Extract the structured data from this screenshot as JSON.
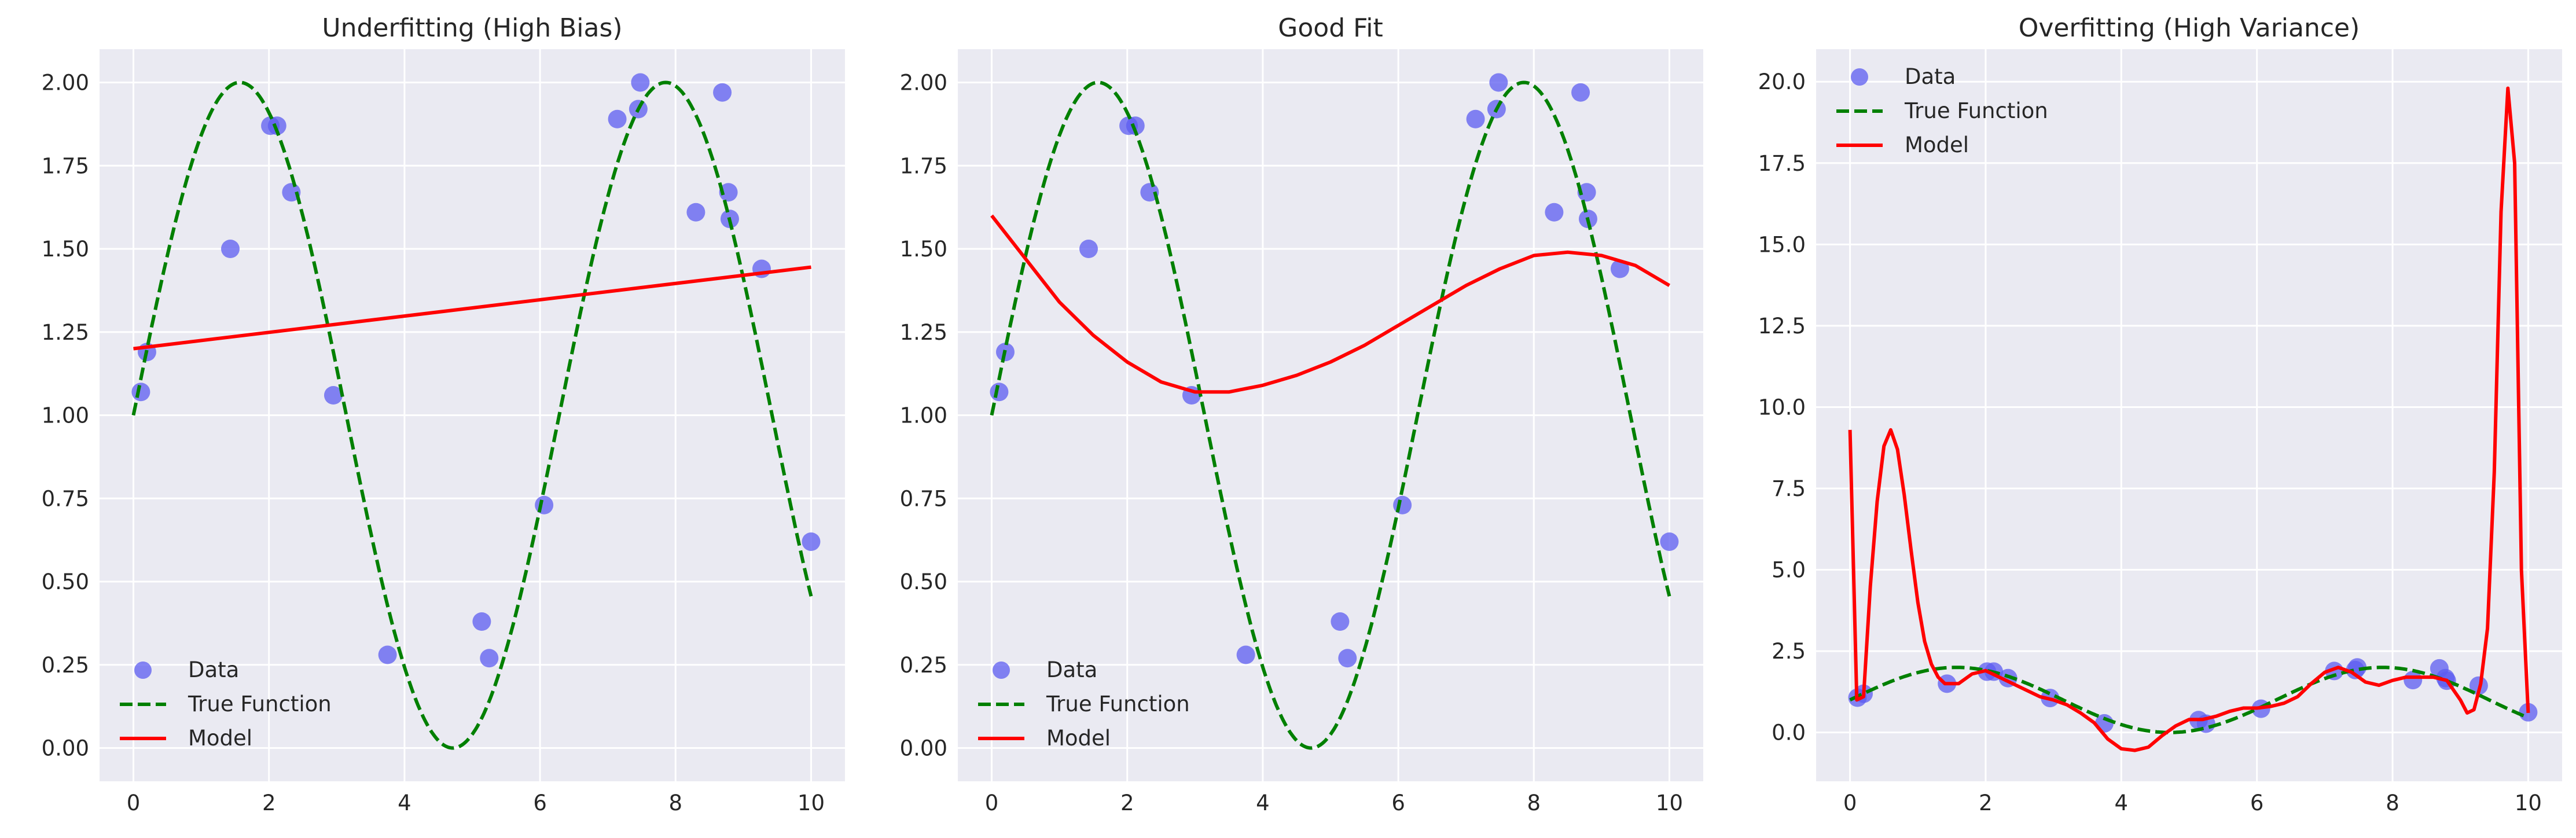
{
  "chart_data": [
    {
      "type": "scatter",
      "title": "Underfitting (High Bias)",
      "xlabel": "",
      "ylabel": "",
      "xlim": [
        -0.5,
        10.5
      ],
      "ylim": [
        -0.1,
        2.1
      ],
      "xticks": [
        0,
        2,
        4,
        6,
        8,
        10
      ],
      "xtick_labels": [
        "0",
        "2",
        "4",
        "6",
        "8",
        "10"
      ],
      "yticks": [
        0.0,
        0.25,
        0.5,
        0.75,
        1.0,
        1.25,
        1.5,
        1.75,
        2.0
      ],
      "ytick_labels": [
        "0.00",
        "0.25",
        "0.50",
        "0.75",
        "1.00",
        "1.25",
        "1.50",
        "1.75",
        "2.00"
      ],
      "grid": true,
      "legend_position": "lower-left",
      "series": [
        {
          "name": "Data",
          "kind": "scatter",
          "color": "#5c5cf0",
          "x": [
            0.11,
            0.2,
            1.43,
            2.02,
            2.12,
            2.33,
            2.95,
            3.75,
            5.14,
            5.25,
            6.06,
            7.14,
            7.45,
            7.48,
            8.3,
            8.69,
            8.78,
            8.8,
            9.27,
            10.0
          ],
          "y": [
            1.07,
            1.19,
            1.5,
            1.87,
            1.87,
            1.67,
            1.06,
            0.28,
            0.38,
            0.27,
            0.73,
            1.89,
            1.92,
            2.0,
            1.61,
            1.97,
            1.67,
            1.59,
            1.44,
            0.62
          ]
        },
        {
          "name": "True Function",
          "kind": "line",
          "style": "dashed",
          "color": "#008000",
          "function": "1 + sin(x)",
          "x_range": [
            0,
            10
          ]
        },
        {
          "name": "Model",
          "kind": "line",
          "style": "solid",
          "color": "#ff0000",
          "x": [
            0,
            10
          ],
          "y": [
            1.2,
            1.445
          ]
        }
      ]
    },
    {
      "type": "scatter",
      "title": "Good Fit",
      "xlabel": "",
      "ylabel": "",
      "xlim": [
        -0.5,
        10.5
      ],
      "ylim": [
        -0.1,
        2.1
      ],
      "xticks": [
        0,
        2,
        4,
        6,
        8,
        10
      ],
      "xtick_labels": [
        "0",
        "2",
        "4",
        "6",
        "8",
        "10"
      ],
      "yticks": [
        0.0,
        0.25,
        0.5,
        0.75,
        1.0,
        1.25,
        1.5,
        1.75,
        2.0
      ],
      "ytick_labels": [
        "0.00",
        "0.25",
        "0.50",
        "0.75",
        "1.00",
        "1.25",
        "1.50",
        "1.75",
        "2.00"
      ],
      "grid": true,
      "legend_position": "lower-left",
      "series": [
        {
          "name": "Data",
          "kind": "scatter",
          "color": "#5c5cf0",
          "x": [
            0.11,
            0.2,
            1.43,
            2.02,
            2.12,
            2.33,
            2.95,
            3.75,
            5.14,
            5.25,
            6.06,
            7.14,
            7.45,
            7.48,
            8.3,
            8.69,
            8.78,
            8.8,
            9.27,
            10.0
          ],
          "y": [
            1.07,
            1.19,
            1.5,
            1.87,
            1.87,
            1.67,
            1.06,
            0.28,
            0.38,
            0.27,
            0.73,
            1.89,
            1.92,
            2.0,
            1.61,
            1.97,
            1.67,
            1.59,
            1.44,
            0.62
          ]
        },
        {
          "name": "True Function",
          "kind": "line",
          "style": "dashed",
          "color": "#008000",
          "function": "1 + sin(x)",
          "x_range": [
            0,
            10
          ]
        },
        {
          "name": "Model",
          "kind": "line",
          "style": "solid",
          "color": "#ff0000",
          "x": [
            0,
            0.5,
            1,
            1.5,
            2,
            2.5,
            3,
            3.5,
            4,
            4.5,
            5,
            5.5,
            6,
            6.5,
            7,
            7.5,
            8,
            8.5,
            9,
            9.5,
            10
          ],
          "y": [
            1.6,
            1.47,
            1.34,
            1.24,
            1.16,
            1.1,
            1.07,
            1.07,
            1.09,
            1.12,
            1.16,
            1.21,
            1.27,
            1.33,
            1.39,
            1.44,
            1.48,
            1.49,
            1.48,
            1.45,
            1.39
          ]
        }
      ]
    },
    {
      "type": "scatter",
      "title": "Overfitting (High Variance)",
      "xlabel": "",
      "ylabel": "",
      "xlim": [
        -0.5,
        10.5
      ],
      "ylim": [
        -1.5,
        21.0
      ],
      "xticks": [
        0,
        2,
        4,
        6,
        8,
        10
      ],
      "xtick_labels": [
        "0",
        "2",
        "4",
        "6",
        "8",
        "10"
      ],
      "yticks": [
        0.0,
        2.5,
        5.0,
        7.5,
        10.0,
        12.5,
        15.0,
        17.5,
        20.0
      ],
      "ytick_labels": [
        "0.0",
        "2.5",
        "5.0",
        "7.5",
        "10.0",
        "12.5",
        "15.0",
        "17.5",
        "20.0"
      ],
      "grid": true,
      "legend_position": "upper-left",
      "series": [
        {
          "name": "Data",
          "kind": "scatter",
          "color": "#5c5cf0",
          "x": [
            0.11,
            0.2,
            1.43,
            2.02,
            2.12,
            2.33,
            2.95,
            3.75,
            5.14,
            5.25,
            6.06,
            7.14,
            7.45,
            7.48,
            8.3,
            8.69,
            8.78,
            8.8,
            9.27,
            10.0
          ],
          "y": [
            1.07,
            1.19,
            1.5,
            1.87,
            1.87,
            1.67,
            1.06,
            0.28,
            0.38,
            0.27,
            0.73,
            1.89,
            1.92,
            2.0,
            1.61,
            1.97,
            1.67,
            1.59,
            1.44,
            0.62
          ]
        },
        {
          "name": "True Function",
          "kind": "line",
          "style": "dashed",
          "color": "#008000",
          "function": "1 + sin(x)",
          "x_range": [
            0,
            10
          ]
        },
        {
          "name": "Model",
          "kind": "line",
          "style": "solid",
          "color": "#ff0000",
          "x": [
            0,
            0.1,
            0.2,
            0.3,
            0.4,
            0.5,
            0.6,
            0.7,
            0.8,
            0.9,
            1.0,
            1.1,
            1.2,
            1.3,
            1.4,
            1.6,
            1.8,
            2.0,
            2.2,
            2.4,
            2.6,
            2.8,
            3.0,
            3.2,
            3.4,
            3.6,
            3.8,
            4.0,
            4.2,
            4.4,
            4.6,
            4.8,
            5.0,
            5.2,
            5.4,
            5.6,
            5.8,
            6.0,
            6.2,
            6.4,
            6.6,
            6.8,
            7.0,
            7.2,
            7.4,
            7.6,
            7.8,
            8.0,
            8.2,
            8.4,
            8.6,
            8.8,
            9.0,
            9.1,
            9.2,
            9.3,
            9.4,
            9.5,
            9.6,
            9.7,
            9.8,
            9.9,
            10.0
          ],
          "y": [
            9.3,
            1.0,
            1.1,
            4.5,
            7.1,
            8.8,
            9.3,
            8.7,
            7.3,
            5.6,
            4.0,
            2.8,
            2.1,
            1.7,
            1.5,
            1.5,
            1.8,
            1.9,
            1.7,
            1.5,
            1.3,
            1.1,
            1.0,
            0.85,
            0.6,
            0.3,
            -0.2,
            -0.5,
            -0.55,
            -0.45,
            -0.1,
            0.2,
            0.4,
            0.4,
            0.5,
            0.65,
            0.75,
            0.75,
            0.8,
            0.9,
            1.1,
            1.5,
            1.85,
            2.0,
            1.85,
            1.55,
            1.45,
            1.6,
            1.7,
            1.7,
            1.7,
            1.6,
            1.0,
            0.6,
            0.7,
            1.5,
            3.2,
            8.0,
            16.0,
            19.8,
            17.5,
            5.0,
            0.6
          ]
        }
      ]
    }
  ]
}
